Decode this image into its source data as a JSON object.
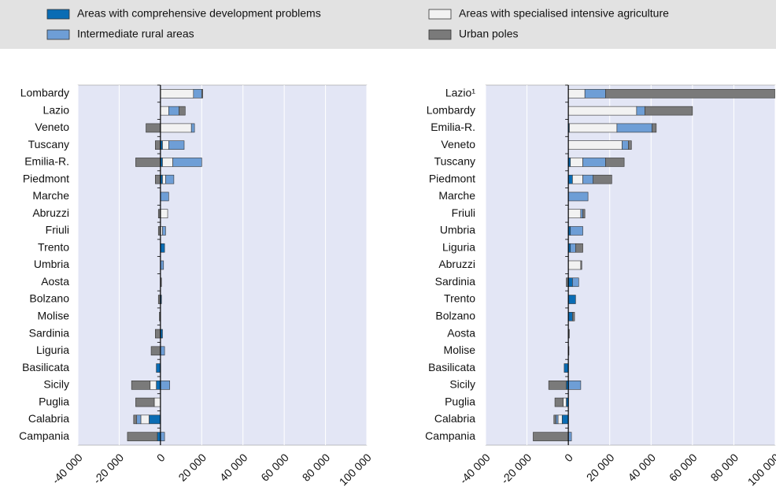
{
  "legend": "top",
  "chart_data": [
    {
      "type": "bar",
      "orientation": "horizontal",
      "grid": true,
      "categories": [
        "Lombardy",
        "Lazio",
        "Veneto",
        "Tuscany",
        "Emilia-R.",
        "Piedmont",
        "Marche",
        "Abruzzi",
        "Friuli",
        "Trento",
        "Umbria",
        "Aosta",
        "Bolzano",
        "Molise",
        "Sardinia",
        "Liguria",
        "Basilicata",
        "Sicily",
        "Puglia",
        "Calabria",
        "Campania"
      ],
      "series": [
        {
          "name": "Areas with comprehensive development problems",
          "color": "#0a6cb4",
          "values": [
            0,
            0,
            0,
            1000,
            1000,
            1000,
            0,
            0,
            0,
            2000,
            0,
            0,
            500,
            0,
            1000,
            0,
            -2000,
            -2000,
            0,
            -5500,
            -1500
          ]
        },
        {
          "name": "Areas with specialised intensive agriculture",
          "color": "#f2f2f2",
          "values": [
            16000,
            4000,
            15000,
            3000,
            5000,
            1500,
            0,
            3500,
            1000,
            0,
            0,
            0,
            0,
            0,
            0,
            0,
            0,
            -3000,
            -3000,
            -4000,
            0
          ]
        },
        {
          "name": "Intermediate rural areas",
          "color": "#6e9ed6",
          "values": [
            4000,
            5000,
            1500,
            7500,
            14000,
            4000,
            4000,
            0,
            1500,
            0,
            1500,
            0,
            0,
            0,
            0,
            2000,
            0,
            4500,
            0,
            -2000,
            2000
          ]
        },
        {
          "name": "Urban poles",
          "color": "#7a7a7a",
          "values": [
            500,
            3000,
            -7000,
            -2500,
            -12000,
            -2500,
            0,
            -1000,
            -1000,
            0,
            0,
            500,
            -1000,
            -500,
            -2500,
            -4500,
            0,
            -9000,
            -9000,
            -1500,
            -14500
          ]
        }
      ],
      "xlim": [
        -40000,
        100000
      ],
      "xticks": [
        {
          "value": -40000,
          "label": "-40 000"
        },
        {
          "value": -20000,
          "label": "-20 000"
        },
        0,
        {
          "value": 20000,
          "label": "20 000"
        },
        {
          "value": 40000,
          "label": "40 000"
        },
        {
          "value": 60000,
          "label": "60 000"
        },
        {
          "value": 80000,
          "label": "80 000"
        },
        {
          "value": 100000,
          "label": "100 000"
        }
      ]
    },
    {
      "type": "bar",
      "orientation": "horizontal",
      "grid": true,
      "categories": [
        "Lazio¹",
        "Lombardy",
        "Emilia-R.",
        "Veneto",
        "Tuscany",
        "Piedmont",
        "Marche",
        "Friuli",
        "Umbria",
        "Liguria",
        "Abruzzi",
        "Sardinia",
        "Trento",
        "Bolzano",
        "Aosta",
        "Molise",
        "Basilicata",
        "Sicily",
        "Puglia",
        "Calabria",
        "Campania"
      ],
      "series": [
        {
          "name": "Areas with comprehensive development problems",
          "color": "#0a6cb4",
          "values": [
            0,
            0,
            500,
            0,
            1000,
            2000,
            0,
            0,
            1000,
            1000,
            0,
            2000,
            3500,
            2000,
            0,
            0,
            -2000,
            -1000,
            -1000,
            -3000,
            0
          ]
        },
        {
          "name": "Areas with specialised intensive agriculture",
          "color": "#f2f2f2",
          "values": [
            8000,
            33000,
            23000,
            26000,
            6000,
            5000,
            0,
            6000,
            0,
            0,
            6000,
            0,
            0,
            0,
            0,
            0,
            0,
            0,
            -1500,
            -2000,
            0
          ]
        },
        {
          "name": "Intermediate rural areas",
          "color": "#6e9ed6",
          "values": [
            10000,
            4000,
            17000,
            3000,
            11000,
            5000,
            9500,
            1000,
            6000,
            2500,
            0,
            3000,
            0,
            0,
            0,
            0,
            0,
            6000,
            0,
            -1000,
            1500
          ]
        },
        {
          "name": "Urban poles",
          "color": "#7a7a7a",
          "values": [
            82000,
            23000,
            2000,
            1500,
            9000,
            9000,
            0,
            1000,
            0,
            3500,
            500,
            -1000,
            0,
            1000,
            500,
            300,
            0,
            -8500,
            -4000,
            -1000,
            -17000
          ]
        }
      ],
      "xlim": [
        -40000,
        100000
      ],
      "xticks": [
        {
          "value": -40000,
          "label": "-40 000"
        },
        {
          "value": -20000,
          "label": "-20 000"
        },
        0,
        {
          "value": 20000,
          "label": "20 000"
        },
        {
          "value": 40000,
          "label": "40 000"
        },
        {
          "value": 60000,
          "label": "60 000"
        },
        {
          "value": 80000,
          "label": "80 000"
        },
        {
          "value": 100000,
          "label": "100 000"
        }
      ]
    }
  ]
}
